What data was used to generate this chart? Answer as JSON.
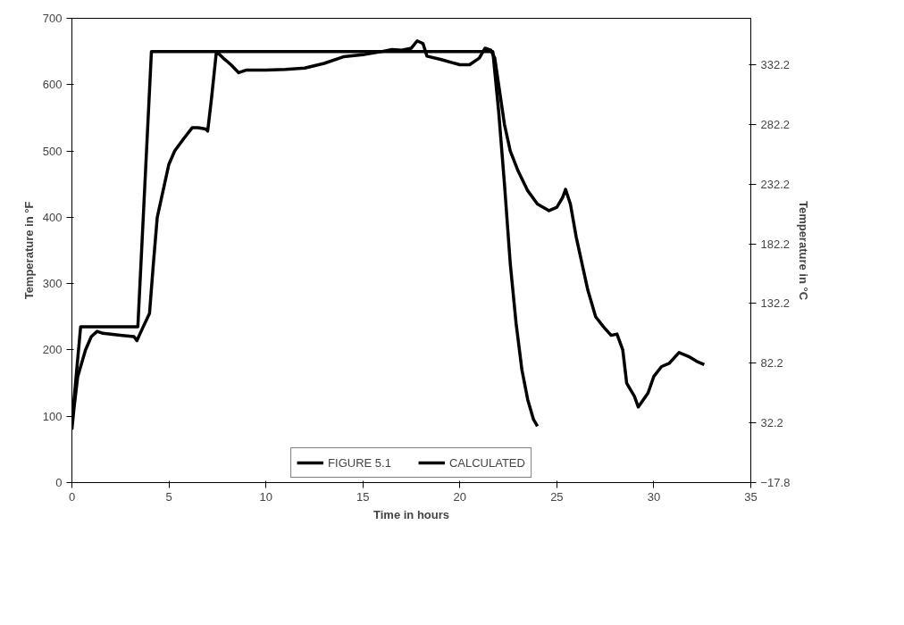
{
  "chart_data": {
    "type": "line",
    "xlabel": "Time in hours",
    "ylabel": "Temperature in °F",
    "y2label": "Temperature in °C",
    "xlim": [
      0,
      35
    ],
    "xticks": [
      0,
      5,
      10,
      15,
      20,
      25,
      30,
      35
    ],
    "ylim": [
      0,
      700
    ],
    "yticks": [
      0,
      100,
      200,
      300,
      400,
      500,
      600,
      700
    ],
    "y2lim": [
      -17.8,
      371.1
    ],
    "y2ticks": [
      -17.8,
      32.2,
      82.2,
      132.2,
      182.2,
      232.2,
      282.2,
      332.2
    ],
    "grid": false,
    "legend": "bottom",
    "marker": "none",
    "line_style": "solid",
    "series": [
      {
        "name": "FIGURE 5.1",
        "color": "#000000",
        "x": [
          0,
          0.1,
          0.3,
          0.7,
          1.0,
          1.3,
          1.6,
          2.5,
          3.2,
          3.35,
          3.6,
          4.0,
          4.2,
          4.4,
          4.7,
          5.0,
          5.3,
          5.8,
          6.2,
          6.5,
          6.9,
          7.0,
          7.2,
          7.45,
          7.8,
          8.2,
          8.6,
          9.0,
          10,
          11,
          12,
          13,
          14,
          15,
          16,
          16.5,
          17,
          17.5,
          17.8,
          18.1,
          18.3,
          19,
          20,
          20.5,
          21.0,
          21.3,
          21.6,
          21.8,
          22.0,
          22.3,
          22.6,
          23.0,
          23.5,
          24.0,
          24.6,
          25.0,
          25.3,
          25.45,
          25.7,
          26.0,
          26.3,
          26.6,
          27.0,
          27.4,
          27.8,
          28.1,
          28.4,
          28.6,
          29.0,
          29.2,
          29.7,
          30.0,
          30.4,
          30.8,
          31.3,
          31.8,
          32.2,
          32.6
        ],
        "values": [
          80,
          110,
          160,
          200,
          220,
          228,
          225,
          222,
          220,
          214,
          230,
          255,
          330,
          400,
          440,
          480,
          500,
          520,
          535,
          535,
          533,
          530,
          580,
          650,
          640,
          630,
          618,
          622,
          622,
          623,
          625,
          632,
          642,
          645,
          650,
          653,
          652,
          655,
          666,
          662,
          643,
          638,
          630,
          630,
          640,
          655,
          652,
          640,
          600,
          540,
          500,
          470,
          440,
          420,
          410,
          415,
          430,
          442,
          420,
          370,
          330,
          290,
          250,
          235,
          222,
          224,
          200,
          150,
          130,
          114,
          135,
          160,
          175,
          180,
          196,
          190,
          183,
          178
        ]
      },
      {
        "name": "CALCULATED",
        "color": "#000000",
        "x": [
          0,
          0.45,
          3.4,
          4.1,
          21.7,
          22.0,
          22.3,
          22.6,
          22.9,
          23.2,
          23.5,
          23.8,
          24.0
        ],
        "values": [
          90,
          235,
          235,
          650,
          650,
          560,
          450,
          330,
          240,
          170,
          125,
          95,
          85
        ]
      }
    ]
  }
}
